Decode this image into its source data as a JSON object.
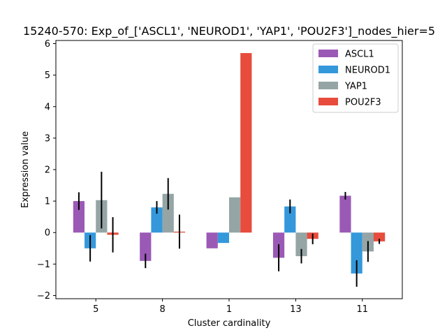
{
  "chart_data": {
    "type": "bar",
    "title": "15240-570: Exp_of_['ASCL1', 'NEUROD1', 'YAP1', 'POU2F3']_nodes_hier=5",
    "xlabel": "Cluster cardinality",
    "ylabel": "Expression value",
    "categories": [
      "5",
      "8",
      "1",
      "13",
      "11"
    ],
    "ylim": [
      -2.1,
      6.1
    ],
    "yticks": [
      -2,
      -1,
      0,
      1,
      2,
      3,
      4,
      5,
      6
    ],
    "legend_position": "top-right",
    "grid": false,
    "series": [
      {
        "name": "ASCL1",
        "color": "#9b59b6",
        "values": [
          1.0,
          -0.9,
          -0.5,
          -0.8,
          1.17
        ],
        "errors": [
          0.28,
          0.23,
          null,
          0.43,
          0.12
        ]
      },
      {
        "name": "NEUROD1",
        "color": "#3498db",
        "values": [
          -0.5,
          0.8,
          -0.33,
          0.83,
          -1.3
        ],
        "errors": [
          0.42,
          0.2,
          null,
          0.22,
          0.42
        ]
      },
      {
        "name": "YAP1",
        "color": "#95a5a6",
        "values": [
          1.03,
          1.23,
          1.12,
          -0.75,
          -0.6
        ],
        "errors": [
          0.9,
          0.5,
          null,
          0.23,
          0.33
        ]
      },
      {
        "name": "POU2F3",
        "color": "#e74c3c",
        "values": [
          -0.07,
          0.03,
          5.7,
          -0.2,
          -0.28
        ],
        "errors": [
          0.56,
          0.54,
          null,
          0.17,
          0.08
        ]
      }
    ]
  }
}
